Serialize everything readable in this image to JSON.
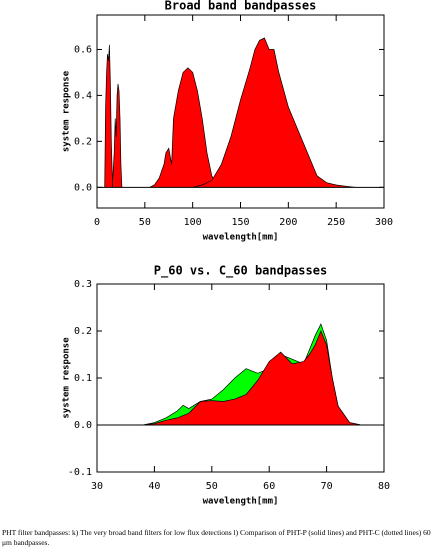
{
  "chart_data": [
    {
      "type": "area",
      "title": "Broad band bandpasses",
      "x_label": "wavelength[mm]",
      "y_label": "system response",
      "xlim": [
        0,
        300
      ],
      "ylim": [
        -0.09,
        0.75
      ],
      "xticks": [
        0,
        50,
        100,
        150,
        200,
        250,
        300
      ],
      "yticks": [
        {
          "value": 0,
          "label": "0.0"
        },
        0.2,
        0.4,
        0.6
      ],
      "series": [
        {
          "color": "#ff0000",
          "x": [
            8,
            9,
            10,
            11,
            12,
            13,
            14,
            15,
            16,
            17
          ],
          "values": [
            0,
            0.35,
            0.5,
            0.58,
            0.55,
            0.62,
            0.45,
            0.2,
            0.05,
            0
          ]
        },
        {
          "color": "#ff0000",
          "x": [
            16,
            18,
            19,
            20,
            21,
            22,
            23,
            24,
            25,
            26
          ],
          "values": [
            0,
            0.15,
            0.3,
            0.22,
            0.4,
            0.45,
            0.42,
            0.3,
            0.1,
            0
          ]
        },
        {
          "color": "#ff0000",
          "x": [
            55,
            60,
            65,
            70,
            72,
            75,
            78,
            80,
            85,
            90,
            95,
            100,
            105,
            110,
            115,
            120,
            125,
            130
          ],
          "values": [
            0,
            0.01,
            0.04,
            0.1,
            0.15,
            0.17,
            0.1,
            0.3,
            0.42,
            0.5,
            0.52,
            0.5,
            0.42,
            0.3,
            0.15,
            0.05,
            0.01,
            0
          ]
        },
        {
          "color": "#ff0000",
          "x": [
            100,
            110,
            120,
            130,
            140,
            150,
            160,
            165,
            170,
            175,
            180,
            185,
            190,
            200,
            210,
            220,
            230,
            240,
            250,
            260,
            270
          ],
          "values": [
            0,
            0.01,
            0.03,
            0.1,
            0.22,
            0.38,
            0.52,
            0.6,
            0.64,
            0.65,
            0.6,
            0.6,
            0.5,
            0.35,
            0.25,
            0.15,
            0.05,
            0.02,
            0.01,
            0.005,
            0
          ]
        }
      ]
    },
    {
      "type": "area",
      "title": "P_60 vs. C_60 bandpasses",
      "x_label": "wavelength[mm]",
      "y_label": "system response",
      "xlim": [
        30,
        80
      ],
      "ylim": [
        -0.1,
        0.3
      ],
      "xticks": [
        30,
        40,
        50,
        60,
        70,
        80
      ],
      "yticks": [
        {
          "value": -0.1,
          "label": "-0.1"
        },
        {
          "value": 0,
          "label": "0.0"
        },
        0.1,
        0.2,
        0.3
      ],
      "series": [
        {
          "color": "#00ff00",
          "x": [
            38,
            40,
            42,
            44,
            45,
            46,
            48,
            50,
            52,
            54,
            56,
            58,
            60,
            62,
            64,
            66,
            67,
            68,
            69,
            70,
            71,
            72,
            74,
            76,
            78
          ],
          "values": [
            0,
            0.005,
            0.015,
            0.03,
            0.042,
            0.035,
            0.05,
            0.055,
            0.075,
            0.1,
            0.12,
            0.11,
            0.12,
            0.15,
            0.14,
            0.13,
            0.16,
            0.19,
            0.215,
            0.18,
            0.1,
            0.04,
            0.005,
            0,
            0
          ]
        },
        {
          "color": "#ff0000",
          "x": [
            38,
            40,
            42,
            44,
            45,
            46,
            48,
            50,
            52,
            54,
            56,
            58,
            60,
            62,
            64,
            66,
            67,
            68,
            69,
            70,
            71,
            72,
            74,
            76,
            78
          ],
          "values": [
            0,
            0.003,
            0.01,
            0.015,
            0.02,
            0.025,
            0.05,
            0.052,
            0.05,
            0.055,
            0.065,
            0.095,
            0.135,
            0.155,
            0.13,
            0.135,
            0.15,
            0.17,
            0.2,
            0.17,
            0.1,
            0.04,
            0.005,
            0,
            0
          ]
        }
      ]
    }
  ],
  "caption": "PHT filter bandpasses: k) The very broad band filters for low flux detections l) Comparison of PHT-P (solid lines) and PHT-C (dotted lines) 60 μm bandpasses."
}
